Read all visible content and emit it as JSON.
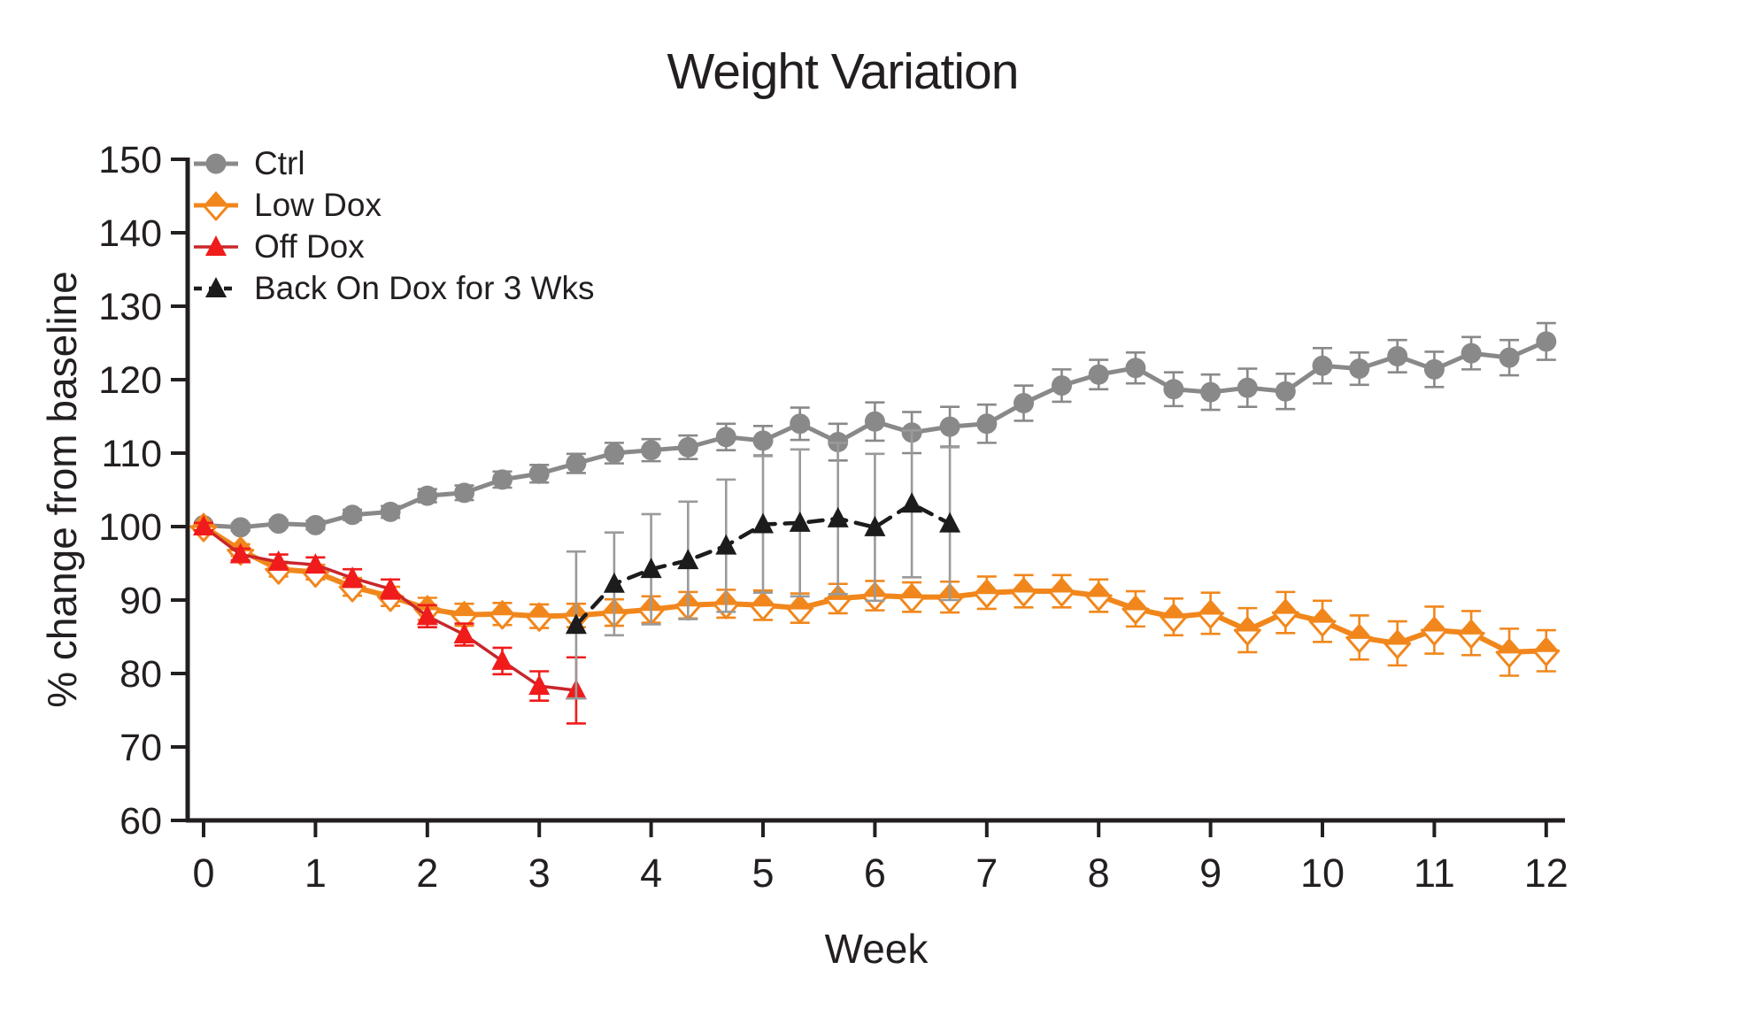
{
  "figure": {
    "background_color": "#ffffff",
    "text_color": "#231f20"
  },
  "chart_data": {
    "type": "line",
    "title": "Weight Variation",
    "xlabel": "Week",
    "ylabel": "% change from baseline",
    "xlim": [
      0,
      12
    ],
    "ylim": [
      60,
      150
    ],
    "x_ticks": [
      0,
      1,
      2,
      3,
      4,
      5,
      6,
      7,
      8,
      9,
      10,
      11,
      12
    ],
    "y_ticks": [
      60,
      70,
      80,
      90,
      100,
      110,
      120,
      130,
      140,
      150
    ],
    "grid": false,
    "legend_position": "top-left-inside",
    "error_bars": "sd",
    "series": [
      {
        "name": "Ctrl",
        "color": "#898989",
        "marker": "circle",
        "line_style": "solid",
        "x": [
          0,
          0.33,
          0.67,
          1,
          1.33,
          1.67,
          2,
          2.33,
          2.67,
          3,
          3.33,
          3.67,
          4,
          4.33,
          4.67,
          5,
          5.33,
          5.67,
          6,
          6.33,
          6.67,
          7,
          7.33,
          7.67,
          8,
          8.33,
          8.67,
          9,
          9.33,
          9.67,
          10,
          10.33,
          10.67,
          11,
          11.33,
          11.67,
          12
        ],
        "y": [
          100.2,
          99.9,
          100.4,
          100.2,
          101.6,
          102.0,
          104.2,
          104.6,
          106.4,
          107.2,
          108.6,
          110.0,
          110.4,
          110.8,
          112.2,
          111.7,
          114.0,
          111.5,
          114.3,
          112.8,
          113.6,
          114.0,
          116.8,
          119.2,
          120.7,
          121.6,
          118.7,
          118.3,
          118.9,
          118.4,
          121.9,
          121.5,
          123.2,
          121.4,
          123.6,
          123.0,
          125.2
        ],
        "err": [
          0.4,
          0.5,
          0.5,
          0.6,
          0.7,
          0.8,
          0.9,
          1.0,
          1.1,
          1.2,
          1.3,
          1.4,
          1.5,
          1.6,
          1.8,
          2.0,
          2.2,
          2.5,
          2.6,
          2.8,
          2.7,
          2.6,
          2.4,
          2.2,
          2.0,
          2.1,
          2.3,
          2.4,
          2.6,
          2.4,
          2.4,
          2.2,
          2.2,
          2.4,
          2.2,
          2.4,
          2.5
        ]
      },
      {
        "name": "Low Dox",
        "color": "#f1871c",
        "marker": "half-diamond",
        "line_style": "solid",
        "x": [
          0,
          0.33,
          0.67,
          1,
          1.33,
          1.67,
          2,
          2.33,
          2.67,
          3,
          3.33,
          3.67,
          4,
          4.33,
          4.67,
          5,
          5.33,
          5.67,
          6,
          6.33,
          6.67,
          7,
          7.33,
          7.67,
          8,
          8.33,
          8.67,
          9,
          9.33,
          9.67,
          10,
          10.33,
          10.67,
          11,
          11.33,
          11.67,
          12
        ],
        "y": [
          100.0,
          96.8,
          94.2,
          93.8,
          91.8,
          90.5,
          88.8,
          88.0,
          88.1,
          87.8,
          87.9,
          88.3,
          88.7,
          89.3,
          89.5,
          89.3,
          88.9,
          90.2,
          90.6,
          90.4,
          90.4,
          91.0,
          91.2,
          91.2,
          90.6,
          88.8,
          87.7,
          88.2,
          85.9,
          88.3,
          87.1,
          84.9,
          84.1,
          85.9,
          85.5,
          82.9,
          83.1
        ],
        "err": [
          0.4,
          0.8,
          1.0,
          1.0,
          1.2,
          1.3,
          1.5,
          1.5,
          1.5,
          1.6,
          1.6,
          1.8,
          1.8,
          1.8,
          1.9,
          2.0,
          2.0,
          2.0,
          2.0,
          2.0,
          2.1,
          2.2,
          2.2,
          2.2,
          2.2,
          2.4,
          2.5,
          2.8,
          3.0,
          2.8,
          2.8,
          3.0,
          3.0,
          3.2,
          3.0,
          3.2,
          2.8
        ]
      },
      {
        "name": "Off Dox",
        "color": "#f01b1b",
        "line_color": "#c9262b",
        "marker": "triangle",
        "line_style": "solid",
        "x": [
          0,
          0.33,
          0.67,
          1,
          1.33,
          1.67,
          2,
          2.33,
          2.67,
          3,
          3.33
        ],
        "y": [
          100.0,
          96.2,
          95.2,
          94.8,
          93.0,
          91.5,
          87.8,
          85.3,
          81.7,
          78.3,
          77.7
        ],
        "err": [
          0.5,
          0.8,
          1.0,
          1.0,
          1.2,
          1.3,
          1.5,
          1.5,
          1.8,
          2.0,
          4.5
        ]
      },
      {
        "name": "Back On Dox for 3 Wks",
        "color": "#1c1c1c",
        "err_color": "#9a9a9a",
        "marker": "triangle",
        "line_style": "dashed",
        "x": [
          3.33,
          3.67,
          4,
          4.33,
          4.67,
          5,
          5.33,
          5.67,
          6,
          6.33,
          6.67
        ],
        "y": [
          86.6,
          92.2,
          94.2,
          95.4,
          97.4,
          100.3,
          100.5,
          101.1,
          99.9,
          103.1,
          100.4
        ],
        "err": [
          10,
          7,
          7.5,
          8,
          9,
          9.3,
          10,
          10.3,
          10,
          10,
          10.4
        ]
      }
    ]
  }
}
